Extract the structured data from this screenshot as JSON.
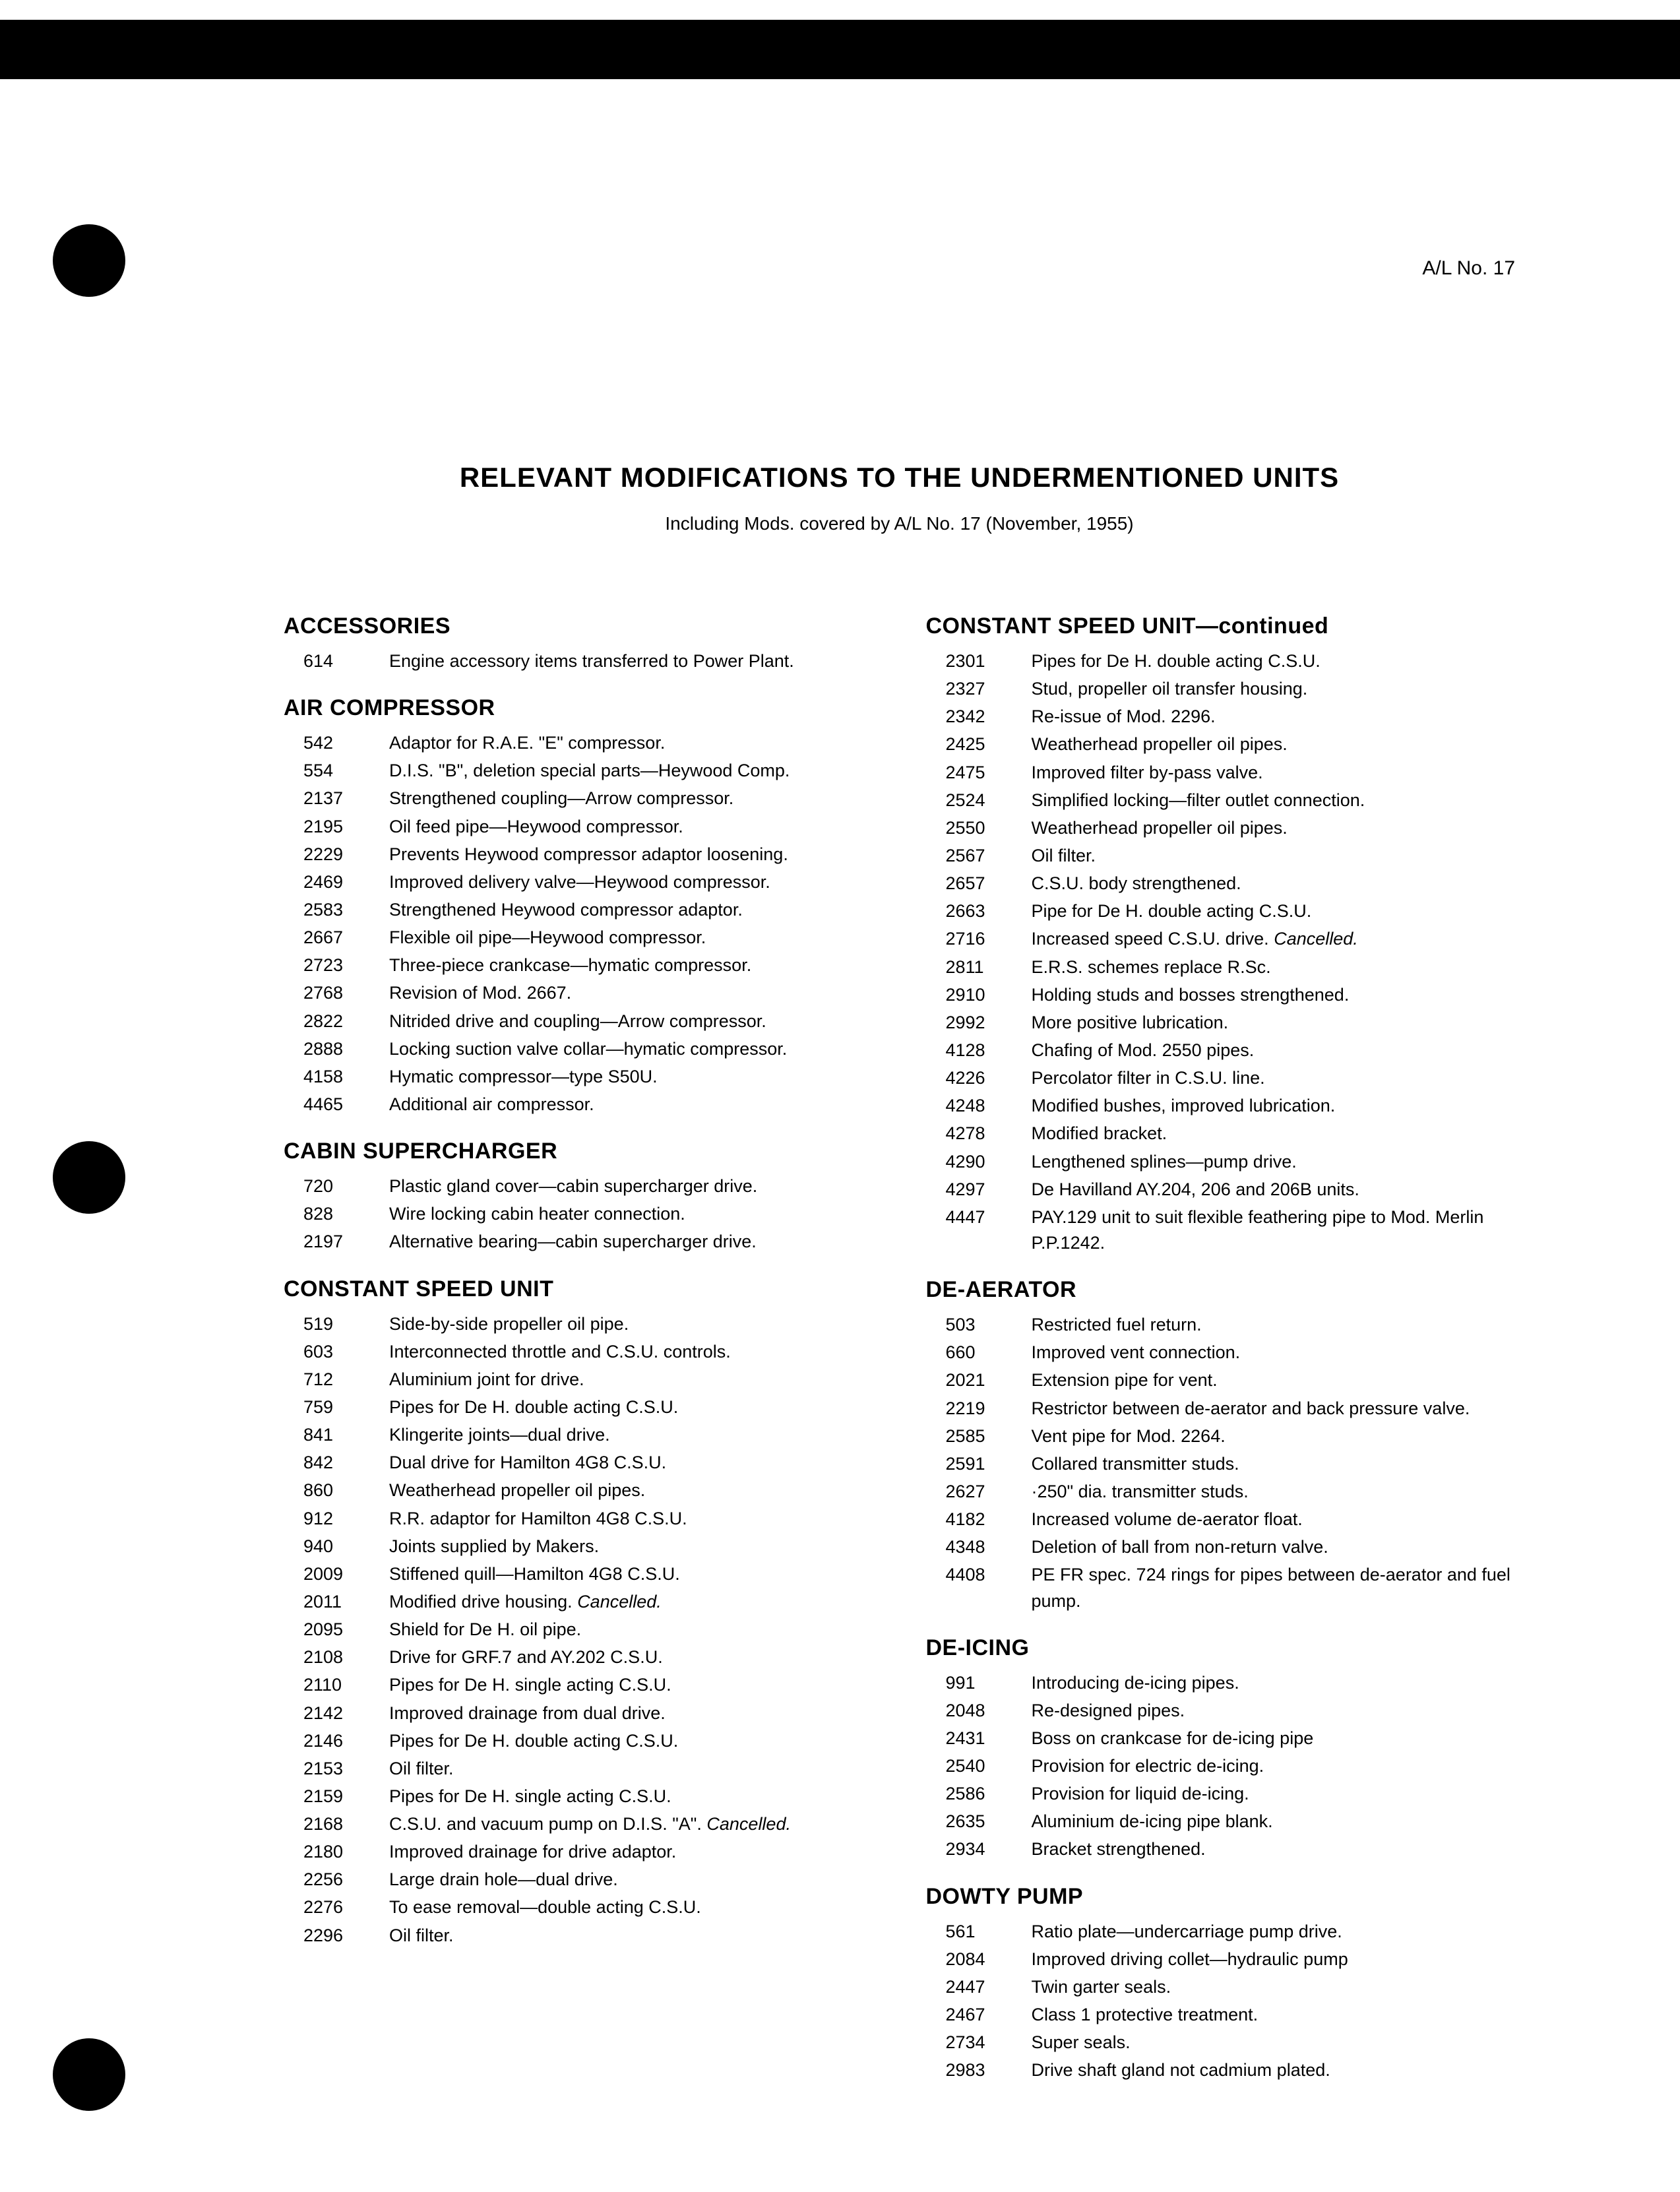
{
  "header_right": "A/L No. 17",
  "title": "RELEVANT MODIFICATIONS TO THE UNDERMENTIONED UNITS",
  "subtitle": "Including Mods. covered by A/L No. 17 (November, 1955)",
  "left_sections": [
    {
      "heading": "ACCESSORIES",
      "rows": [
        {
          "num": "614",
          "desc": "Engine accessory items transferred to Power Plant."
        }
      ]
    },
    {
      "heading": "AIR COMPRESSOR",
      "rows": [
        {
          "num": "542",
          "desc": "Adaptor for R.A.E. \"E\" compressor."
        },
        {
          "num": "554",
          "desc": "D.I.S. \"B\", deletion special parts—Heywood Comp."
        },
        {
          "num": "2137",
          "desc": "Strengthened coupling—Arrow compressor."
        },
        {
          "num": "2195",
          "desc": "Oil feed pipe—Heywood compressor."
        },
        {
          "num": "2229",
          "desc": "Prevents Heywood compressor adaptor loosening."
        },
        {
          "num": "2469",
          "desc": "Improved delivery valve—Heywood compressor."
        },
        {
          "num": "2583",
          "desc": "Strengthened Heywood compressor adaptor."
        },
        {
          "num": "2667",
          "desc": "Flexible oil pipe—Heywood compressor."
        },
        {
          "num": "2723",
          "desc": "Three-piece crankcase—hymatic compressor."
        },
        {
          "num": "2768",
          "desc": "Revision of Mod. 2667."
        },
        {
          "num": "2822",
          "desc": "Nitrided drive and coupling—Arrow compressor."
        },
        {
          "num": "2888",
          "desc": "Locking suction valve collar—hymatic compressor."
        },
        {
          "num": "4158",
          "desc": "Hymatic compressor—type S50U."
        },
        {
          "num": "4465",
          "desc": "Additional air compressor."
        }
      ]
    },
    {
      "heading": "CABIN SUPERCHARGER",
      "rows": [
        {
          "num": "720",
          "desc": "Plastic gland cover—cabin supercharger drive."
        },
        {
          "num": "828",
          "desc": "Wire locking cabin heater connection."
        },
        {
          "num": "2197",
          "desc": "Alternative bearing—cabin supercharger drive."
        }
      ]
    },
    {
      "heading": "CONSTANT SPEED UNIT",
      "rows": [
        {
          "num": "519",
          "desc": "Side-by-side propeller oil pipe."
        },
        {
          "num": "603",
          "desc": "Interconnected throttle and C.S.U. controls."
        },
        {
          "num": "712",
          "desc": "Aluminium joint for drive."
        },
        {
          "num": "759",
          "desc": "Pipes for De H. double acting C.S.U."
        },
        {
          "num": "841",
          "desc": "Klingerite joints—dual drive."
        },
        {
          "num": "842",
          "desc": "Dual drive for Hamilton 4G8 C.S.U."
        },
        {
          "num": "860",
          "desc": "Weatherhead propeller oil pipes."
        },
        {
          "num": "912",
          "desc": "R.R. adaptor for Hamilton 4G8 C.S.U."
        },
        {
          "num": "940",
          "desc": "Joints supplied by Makers."
        },
        {
          "num": "2009",
          "desc": "Stiffened quill—Hamilton 4G8 C.S.U."
        },
        {
          "num": "2011",
          "desc": "Modified drive housing.",
          "suffix_italic": "Cancelled."
        },
        {
          "num": "2095",
          "desc": "Shield for De H. oil pipe."
        },
        {
          "num": "2108",
          "desc": "Drive for GRF.7 and AY.202 C.S.U."
        },
        {
          "num": "2110",
          "desc": "Pipes for De H. single acting C.S.U."
        },
        {
          "num": "2142",
          "desc": "Improved drainage from dual drive."
        },
        {
          "num": "2146",
          "desc": "Pipes for De H. double acting C.S.U."
        },
        {
          "num": "2153",
          "desc": "Oil filter."
        },
        {
          "num": "2159",
          "desc": "Pipes for De H. single acting C.S.U."
        },
        {
          "num": "2168",
          "desc": "C.S.U. and vacuum pump on D.I.S. \"A\".",
          "suffix_italic": "Cancelled."
        },
        {
          "num": "2180",
          "desc": "Improved drainage for drive adaptor."
        },
        {
          "num": "2256",
          "desc": "Large drain hole—dual drive."
        },
        {
          "num": "2276",
          "desc": "To ease removal—double acting C.S.U."
        },
        {
          "num": "2296",
          "desc": "Oil filter."
        }
      ]
    }
  ],
  "right_sections": [
    {
      "heading": "CONSTANT SPEED UNIT—continued",
      "rows": [
        {
          "num": "2301",
          "desc": "Pipes for De H. double acting C.S.U."
        },
        {
          "num": "2327",
          "desc": "Stud, propeller oil transfer housing."
        },
        {
          "num": "2342",
          "desc": "Re-issue of Mod. 2296."
        },
        {
          "num": "2425",
          "desc": "Weatherhead propeller oil pipes."
        },
        {
          "num": "2475",
          "desc": "Improved filter by-pass valve."
        },
        {
          "num": "2524",
          "desc": "Simplified locking—filter outlet connection."
        },
        {
          "num": "2550",
          "desc": "Weatherhead propeller oil pipes."
        },
        {
          "num": "2567",
          "desc": "Oil filter."
        },
        {
          "num": "2657",
          "desc": "C.S.U. body strengthened."
        },
        {
          "num": "2663",
          "desc": "Pipe for De H. double acting C.S.U."
        },
        {
          "num": "2716",
          "desc": "Increased speed C.S.U. drive.",
          "suffix_italic": "Cancelled."
        },
        {
          "num": "2811",
          "desc": "E.R.S. schemes replace R.Sc."
        },
        {
          "num": "2910",
          "desc": "Holding studs and bosses strengthened."
        },
        {
          "num": "2992",
          "desc": "More positive lubrication."
        },
        {
          "num": "4128",
          "desc": "Chafing of Mod. 2550 pipes."
        },
        {
          "num": "4226",
          "desc": "Percolator filter in C.S.U. line."
        },
        {
          "num": "4248",
          "desc": "Modified bushes, improved lubrication."
        },
        {
          "num": "4278",
          "desc": "Modified bracket."
        },
        {
          "num": "4290",
          "desc": "Lengthened splines—pump drive."
        },
        {
          "num": "4297",
          "desc": "De Havilland AY.204, 206 and 206B units."
        },
        {
          "num": "4447",
          "desc": "PAY.129 unit to suit flexible feathering pipe to Mod. Merlin P.P.1242."
        }
      ]
    },
    {
      "heading": "DE-AERATOR",
      "rows": [
        {
          "num": "503",
          "desc": "Restricted fuel return."
        },
        {
          "num": "660",
          "desc": "Improved vent connection."
        },
        {
          "num": "2021",
          "desc": "Extension pipe for vent."
        },
        {
          "num": "2219",
          "desc": "Restrictor between de-aerator and back pressure valve."
        },
        {
          "num": "2585",
          "desc": "Vent pipe for Mod. 2264."
        },
        {
          "num": "2591",
          "desc": "Collared transmitter studs."
        },
        {
          "num": "2627",
          "desc": "·250\" dia. transmitter studs."
        },
        {
          "num": "4182",
          "desc": "Increased volume de-aerator float."
        },
        {
          "num": "4348",
          "desc": "Deletion of ball from non-return valve."
        },
        {
          "num": "4408",
          "desc": "PE FR spec. 724 rings for pipes between de-aerator and fuel pump."
        }
      ]
    },
    {
      "heading": "DE-ICING",
      "rows": [
        {
          "num": "991",
          "desc": "Introducing de-icing pipes."
        },
        {
          "num": "2048",
          "desc": "Re-designed pipes."
        },
        {
          "num": "2431",
          "desc": "Boss on crankcase for de-icing pipe"
        },
        {
          "num": "2540",
          "desc": "Provision for electric de-icing."
        },
        {
          "num": "2586",
          "desc": "Provision for liquid de-icing."
        },
        {
          "num": "2635",
          "desc": "Aluminium de-icing pipe blank."
        },
        {
          "num": "2934",
          "desc": "Bracket strengthened."
        }
      ]
    },
    {
      "heading": "DOWTY PUMP",
      "rows": [
        {
          "num": "561",
          "desc": "Ratio plate—undercarriage pump drive."
        },
        {
          "num": "2084",
          "desc": "Improved driving collet—hydraulic pump"
        },
        {
          "num": "2447",
          "desc": "Twin garter seals."
        },
        {
          "num": "2467",
          "desc": "Class 1 protective treatment."
        },
        {
          "num": "2734",
          "desc": "Super seals."
        },
        {
          "num": "2983",
          "desc": "Drive shaft gland not cadmium plated."
        }
      ]
    }
  ]
}
